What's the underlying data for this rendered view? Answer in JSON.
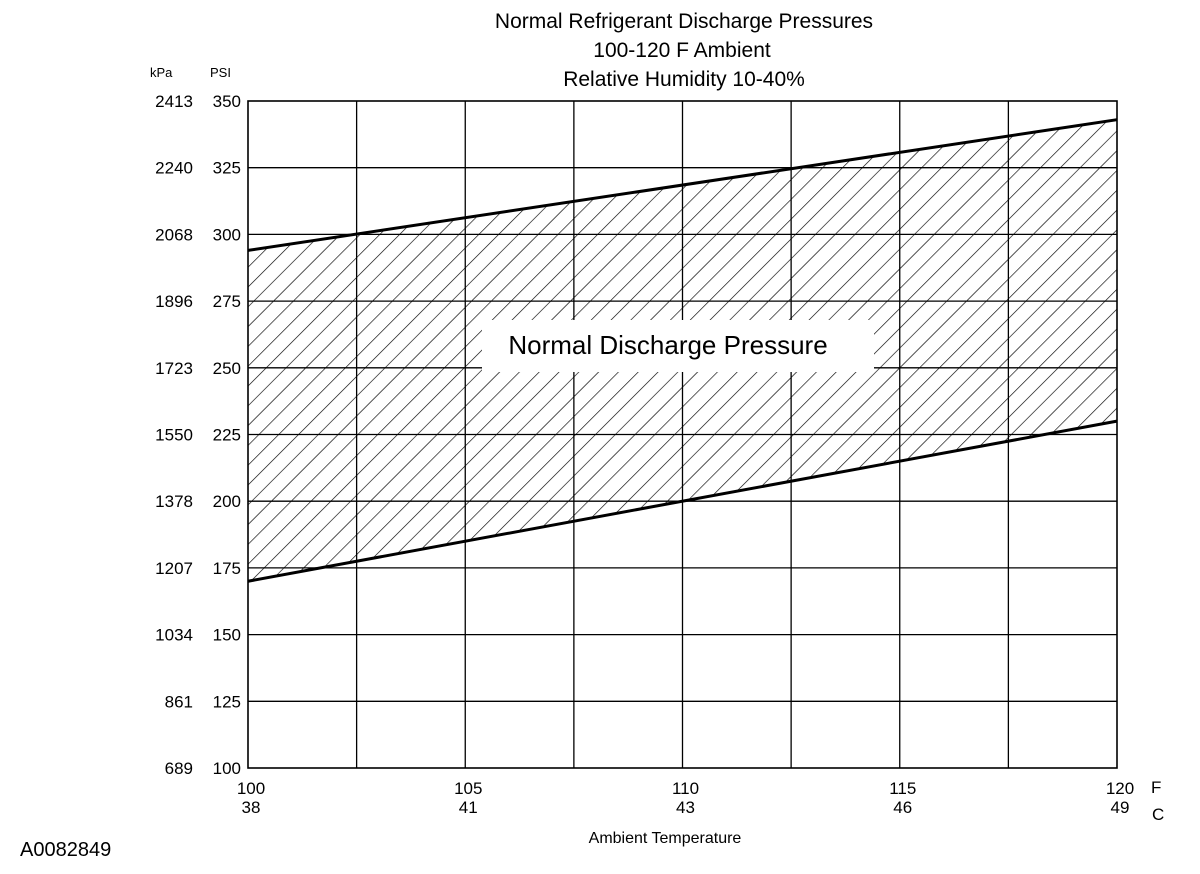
{
  "chart_data": {
    "type": "area",
    "title_lines": [
      "Normal  Refrigerant  Discharge  Pressures",
      "100-120 F Ambient",
      "Relative Humidity 10-40%"
    ],
    "xlabel": "Ambient Temperature",
    "x_unit_primary": "F",
    "x_unit_secondary": "C",
    "y_unit_primary": "PSI",
    "y_unit_secondary": "kPa",
    "xlim": [
      100,
      120
    ],
    "ylim": [
      100,
      350
    ],
    "x_ticks_f": [
      "100",
      "105",
      "110",
      "115",
      "120"
    ],
    "x_ticks_c": [
      "38",
      "41",
      "43",
      "46",
      "49"
    ],
    "y_ticks_psi": [
      "100",
      "125",
      "150",
      "175",
      "200",
      "225",
      "250",
      "275",
      "300",
      "325",
      "350"
    ],
    "y_ticks_kpa": [
      "689",
      "861",
      "1034",
      "1207",
      "1378",
      "1550",
      "1723",
      "1896",
      "2068",
      "2240",
      "2413"
    ],
    "grid": true,
    "band": {
      "name": "Normal Discharge Pressure",
      "upper": {
        "x": [
          100,
          120
        ],
        "y": [
          294,
          343
        ]
      },
      "lower": {
        "x": [
          100,
          120
        ],
        "y": [
          170,
          230
        ]
      }
    }
  },
  "figure_id": "A0082849"
}
